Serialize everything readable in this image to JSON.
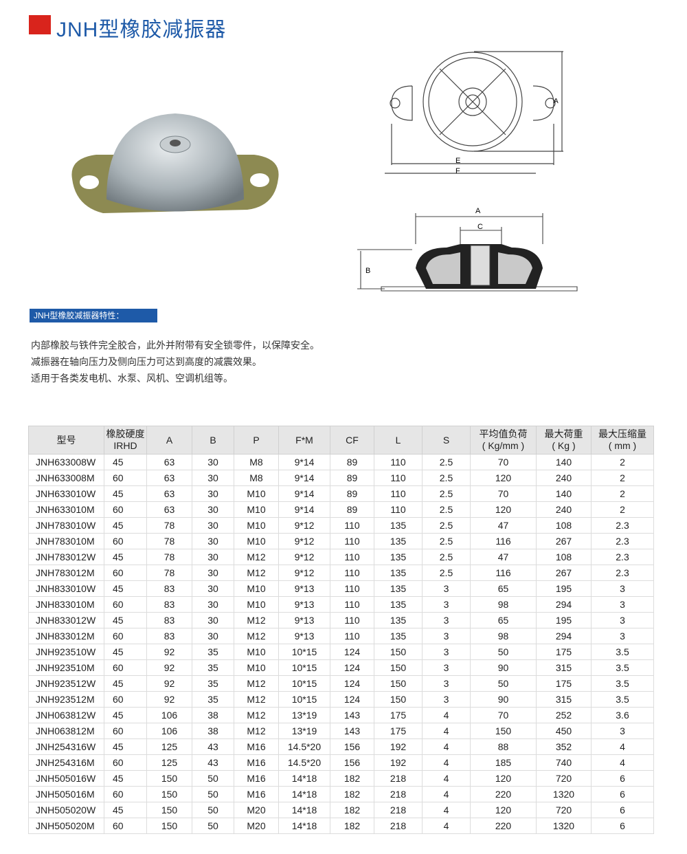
{
  "title": "JNH型橡胶减振器",
  "colors": {
    "accent": "#d9241c",
    "brand": "#1e5aa8"
  },
  "diagram_labels": {
    "a": "A",
    "e": "E",
    "f": "F",
    "a2": "A",
    "c": "C",
    "b": "B"
  },
  "features": {
    "label": "JNH型橡胶减振器特性：",
    "lines": [
      "内部橡胶与铁件完全胶合，此外并附带有安全锁零件，以保障安全。",
      "减振器在轴向压力及侧向压力可达到高度的减震效果。",
      "适用于各类发电机、水泵、风机、空调机组等。"
    ]
  },
  "table": {
    "headers": [
      [
        "型号",
        ""
      ],
      [
        "橡胶硬度",
        "IRHD"
      ],
      [
        "A",
        ""
      ],
      [
        "B",
        ""
      ],
      [
        "P",
        ""
      ],
      [
        "F*M",
        ""
      ],
      [
        "CF",
        ""
      ],
      [
        "L",
        ""
      ],
      [
        "S",
        ""
      ],
      [
        "平均值负荷",
        "( Kg/mm )"
      ],
      [
        "最大荷重",
        "( Kg )"
      ],
      [
        "最大压缩量",
        "( mm )"
      ]
    ],
    "rows": [
      [
        "JNH633008W",
        "45",
        "63",
        "30",
        "M8",
        "9*14",
        "89",
        "110",
        "2.5",
        "70",
        "140",
        "2"
      ],
      [
        "JNH633008M",
        "60",
        "63",
        "30",
        "M8",
        "9*14",
        "89",
        "110",
        "2.5",
        "120",
        "240",
        "2"
      ],
      [
        "JNH633010W",
        "45",
        "63",
        "30",
        "M10",
        "9*14",
        "89",
        "110",
        "2.5",
        "70",
        "140",
        "2"
      ],
      [
        "JNH633010M",
        "60",
        "63",
        "30",
        "M10",
        "9*14",
        "89",
        "110",
        "2.5",
        "120",
        "240",
        "2"
      ],
      [
        "JNH783010W",
        "45",
        "78",
        "30",
        "M10",
        "9*12",
        "110",
        "135",
        "2.5",
        "47",
        "108",
        "2.3"
      ],
      [
        "JNH783010M",
        "60",
        "78",
        "30",
        "M10",
        "9*12",
        "110",
        "135",
        "2.5",
        "116",
        "267",
        "2.3"
      ],
      [
        "JNH783012W",
        "45",
        "78",
        "30",
        "M12",
        "9*12",
        "110",
        "135",
        "2.5",
        "47",
        "108",
        "2.3"
      ],
      [
        "JNH783012M",
        "60",
        "78",
        "30",
        "M12",
        "9*12",
        "110",
        "135",
        "2.5",
        "116",
        "267",
        "2.3"
      ],
      [
        "JNH833010W",
        "45",
        "83",
        "30",
        "M10",
        "9*13",
        "110",
        "135",
        "3",
        "65",
        "195",
        "3"
      ],
      [
        "JNH833010M",
        "60",
        "83",
        "30",
        "M10",
        "9*13",
        "110",
        "135",
        "3",
        "98",
        "294",
        "3"
      ],
      [
        "JNH833012W",
        "45",
        "83",
        "30",
        "M12",
        "9*13",
        "110",
        "135",
        "3",
        "65",
        "195",
        "3"
      ],
      [
        "JNH833012M",
        "60",
        "83",
        "30",
        "M12",
        "9*13",
        "110",
        "135",
        "3",
        "98",
        "294",
        "3"
      ],
      [
        "JNH923510W",
        "45",
        "92",
        "35",
        "M10",
        "10*15",
        "124",
        "150",
        "3",
        "50",
        "175",
        "3.5"
      ],
      [
        "JNH923510M",
        "60",
        "92",
        "35",
        "M10",
        "10*15",
        "124",
        "150",
        "3",
        "90",
        "315",
        "3.5"
      ],
      [
        "JNH923512W",
        "45",
        "92",
        "35",
        "M12",
        "10*15",
        "124",
        "150",
        "3",
        "50",
        "175",
        "3.5"
      ],
      [
        "JNH923512M",
        "60",
        "92",
        "35",
        "M12",
        "10*15",
        "124",
        "150",
        "3",
        "90",
        "315",
        "3.5"
      ],
      [
        "JNH063812W",
        "45",
        "106",
        "38",
        "M12",
        "13*19",
        "143",
        "175",
        "4",
        "70",
        "252",
        "3.6"
      ],
      [
        "JNH063812M",
        "60",
        "106",
        "38",
        "M12",
        "13*19",
        "143",
        "175",
        "4",
        "150",
        "450",
        "3"
      ],
      [
        "JNH254316W",
        "45",
        "125",
        "43",
        "M16",
        "14.5*20",
        "156",
        "192",
        "4",
        "88",
        "352",
        "4"
      ],
      [
        "JNH254316M",
        "60",
        "125",
        "43",
        "M16",
        "14.5*20",
        "156",
        "192",
        "4",
        "185",
        "740",
        "4"
      ],
      [
        "JNH505016W",
        "45",
        "150",
        "50",
        "M16",
        "14*18",
        "182",
        "218",
        "4",
        "120",
        "720",
        "6"
      ],
      [
        "JNH505016M",
        "60",
        "150",
        "50",
        "M16",
        "14*18",
        "182",
        "218",
        "4",
        "220",
        "1320",
        "6"
      ],
      [
        "JNH505020W",
        "45",
        "150",
        "50",
        "M20",
        "14*18",
        "182",
        "218",
        "4",
        "120",
        "720",
        "6"
      ],
      [
        "JNH505020M",
        "60",
        "150",
        "50",
        "M20",
        "14*18",
        "182",
        "218",
        "4",
        "220",
        "1320",
        "6"
      ]
    ]
  }
}
